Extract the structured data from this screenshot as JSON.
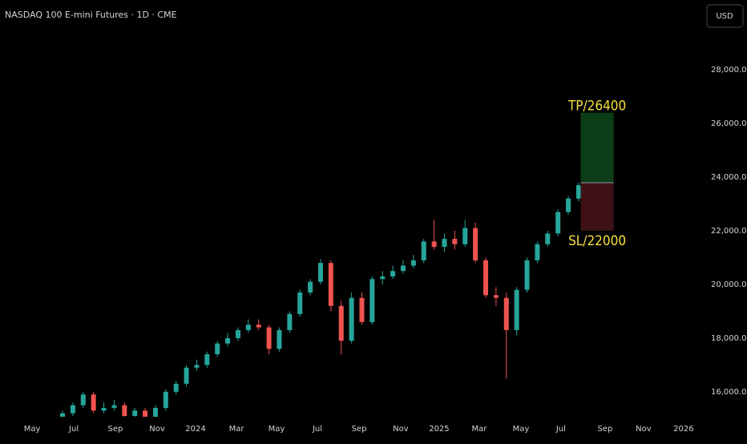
{
  "chart_data": {
    "type": "candlestick",
    "title": "NASDAQ 100 E-mini Futures · 1D · CME",
    "currency": "USD",
    "categories": [
      null,
      null,
      null,
      null,
      null,
      null,
      null,
      null,
      null,
      null,
      null,
      null,
      null,
      null,
      null,
      null,
      null,
      null,
      null,
      null,
      null,
      null,
      null,
      null,
      null,
      null,
      null,
      null,
      null,
      null,
      null,
      null,
      null,
      null,
      null,
      null,
      null,
      null,
      null,
      null,
      null,
      null,
      null,
      null,
      null,
      null,
      null,
      null,
      null,
      null,
      null
    ],
    "open": [
      15050,
      15200,
      15500,
      15900,
      15300,
      15400,
      15500,
      15100,
      15300,
      14900,
      15400,
      16000,
      16300,
      16900,
      17000,
      17400,
      17800,
      18000,
      18300,
      18500,
      18400,
      17600,
      18300,
      18900,
      19700,
      20100,
      20800,
      19200,
      17900,
      19500,
      18600,
      20200,
      20300,
      20500,
      20700,
      20900,
      21600,
      21400,
      21700,
      21500,
      22100,
      20900,
      19600,
      19500,
      18300,
      19800,
      20900,
      21500,
      21900,
      22700,
      23200
    ],
    "high": [
      15300,
      15600,
      16000,
      16000,
      15600,
      15700,
      15600,
      15400,
      15400,
      15500,
      16100,
      16400,
      17000,
      17200,
      17500,
      17900,
      18200,
      18400,
      18700,
      18700,
      18500,
      18400,
      19000,
      19800,
      20200,
      20950,
      20900,
      19400,
      19700,
      19700,
      20300,
      20500,
      20700,
      20900,
      21100,
      21700,
      22400,
      21900,
      22000,
      22400,
      22300,
      21000,
      19900,
      19700,
      19900,
      21000,
      21600,
      22000,
      22800,
      23300,
      23800
    ],
    "low": [
      14900,
      15100,
      15400,
      15200,
      15200,
      15300,
      15000,
      15000,
      14800,
      14800,
      15300,
      15900,
      16200,
      16800,
      16900,
      17300,
      17700,
      17900,
      18200,
      18300,
      17400,
      17500,
      18200,
      18800,
      19600,
      20000,
      19000,
      17400,
      17800,
      18500,
      18500,
      20000,
      20200,
      20400,
      20600,
      20800,
      21300,
      21200,
      21300,
      21400,
      20800,
      19500,
      19200,
      16500,
      18100,
      19700,
      20800,
      21400,
      21800,
      22600,
      23100
    ],
    "close": [
      15200,
      15500,
      15900,
      15300,
      15400,
      15500,
      15100,
      15300,
      14900,
      15400,
      16000,
      16300,
      16900,
      17000,
      17400,
      17800,
      18000,
      18300,
      18500,
      18400,
      17600,
      18300,
      18900,
      19700,
      20100,
      20800,
      19200,
      17900,
      19500,
      18600,
      20200,
      20300,
      20500,
      20700,
      20900,
      21600,
      21400,
      21700,
      21500,
      22100,
      20900,
      19600,
      19500,
      18300,
      19800,
      20900,
      21500,
      21900,
      22700,
      23200,
      23700
    ],
    "up_color": "#26a69a",
    "down_color": "#ef5350",
    "xlim": [
      -6.06,
      61.5
    ],
    "xticks": [
      {
        "value": -2.95,
        "label": "May"
      },
      {
        "value": 1.09,
        "label": "Jul"
      },
      {
        "value": 5.12,
        "label": "Sep"
      },
      {
        "value": 9.16,
        "label": "Nov"
      },
      {
        "value": 12.89,
        "label": "2024"
      },
      {
        "value": 16.85,
        "label": "Mar"
      },
      {
        "value": 20.73,
        "label": "May"
      },
      {
        "value": 24.69,
        "label": "Jul"
      },
      {
        "value": 28.73,
        "label": "Sep"
      },
      {
        "value": 32.76,
        "label": "Nov"
      },
      {
        "value": 36.49,
        "label": "2025"
      },
      {
        "value": 40.37,
        "label": "Mar"
      },
      {
        "value": 44.41,
        "label": "May"
      },
      {
        "value": 48.29,
        "label": "Jul"
      },
      {
        "value": 52.56,
        "label": "Sep"
      },
      {
        "value": 56.29,
        "label": "Nov"
      },
      {
        "value": 60.17,
        "label": "2026"
      }
    ],
    "ylim": [
      15070,
      30600
    ],
    "yticks": [
      {
        "value": 16000,
        "label": "16,000.00"
      },
      {
        "value": 18000,
        "label": "18,000.00"
      },
      {
        "value": 20000,
        "label": "20,000.00"
      },
      {
        "value": 22000,
        "label": "22,000.00"
      },
      {
        "value": 24000,
        "label": "24,000.00"
      },
      {
        "value": 26000,
        "label": "26,000.00"
      },
      {
        "value": 28000,
        "label": "28,000.00"
      }
    ],
    "position": {
      "start": 50.2,
      "end": 53.4,
      "entry": 23790,
      "take_profit": {
        "value": 26400,
        "label": "TP/26400"
      },
      "stop_loss": {
        "value": 22000,
        "label": "SL/22000"
      },
      "profit_color": "#0b3d16",
      "loss_color": "#3d1116",
      "label_color": "#f5e042"
    }
  }
}
